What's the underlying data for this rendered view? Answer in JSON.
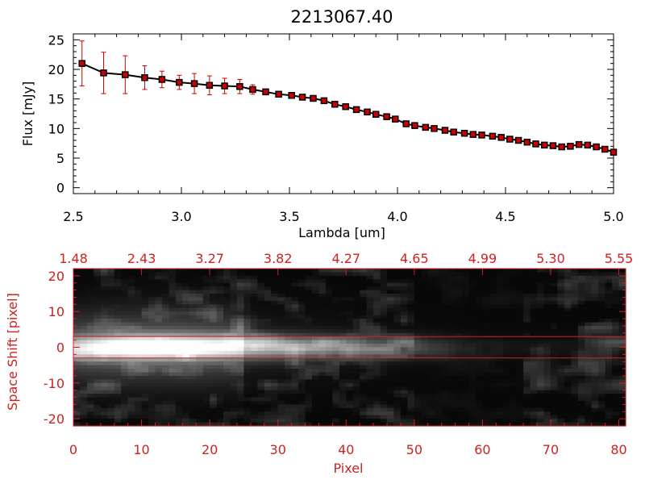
{
  "chart_data": [
    {
      "type": "line",
      "title": "2213067.40",
      "xlabel": "Lambda [um]",
      "ylabel": "Flux [mJy]",
      "xlim": [
        2.5,
        5.0
      ],
      "ylim": [
        -1,
        26
      ],
      "xticks": [
        "2.5",
        "3.0",
        "3.5",
        "4.0",
        "4.5",
        "5.0"
      ],
      "yticks": [
        "0",
        "5",
        "10",
        "15",
        "20",
        "25"
      ],
      "series": [
        {
          "name": "flux",
          "x": [
            2.54,
            2.64,
            2.74,
            2.83,
            2.91,
            2.99,
            3.06,
            3.13,
            3.2,
            3.27,
            3.33,
            3.39,
            3.45,
            3.51,
            3.56,
            3.61,
            3.66,
            3.71,
            3.76,
            3.81,
            3.86,
            3.9,
            3.95,
            3.99,
            4.04,
            4.08,
            4.13,
            4.17,
            4.22,
            4.26,
            4.31,
            4.35,
            4.39,
            4.44,
            4.48,
            4.52,
            4.56,
            4.6,
            4.64,
            4.68,
            4.72,
            4.76,
            4.8,
            4.84,
            4.88,
            4.92,
            4.96,
            5.0
          ],
          "y": [
            21.0,
            19.4,
            19.1,
            18.6,
            18.3,
            17.8,
            17.6,
            17.3,
            17.2,
            17.1,
            16.6,
            16.2,
            15.8,
            15.6,
            15.3,
            15.1,
            14.7,
            14.1,
            13.7,
            13.2,
            12.8,
            12.4,
            12.0,
            11.6,
            10.8,
            10.5,
            10.2,
            10.0,
            9.7,
            9.4,
            9.2,
            9.0,
            8.9,
            8.7,
            8.5,
            8.2,
            8.0,
            7.7,
            7.4,
            7.2,
            7.1,
            6.9,
            7.0,
            7.3,
            7.2,
            6.9,
            6.5,
            6.0
          ],
          "yerr": [
            3.8,
            3.5,
            3.2,
            2.0,
            1.4,
            1.2,
            1.7,
            1.6,
            1.3,
            1.2,
            0.8,
            0.3,
            0.3,
            0.3,
            0.3,
            0.3,
            0.3,
            0.3,
            0.3,
            0.3,
            0.3,
            0.3,
            0.3,
            0.3,
            0.3,
            0.3,
            0.3,
            0.3,
            0.3,
            0.3,
            0.3,
            0.3,
            0.3,
            0.3,
            0.3,
            0.3,
            0.3,
            0.3,
            0.3,
            0.3,
            0.3,
            0.3,
            0.3,
            0.3,
            0.3,
            0.3,
            0.3,
            0.3
          ]
        }
      ],
      "colors": {
        "line": "#000000",
        "marker": "#cc0000",
        "errorbar": "#cc0000"
      }
    },
    {
      "type": "heatmap",
      "xlabel": "Pixel",
      "ylabel": "Space Shift [pixel]",
      "xlim": [
        0,
        81
      ],
      "ylim": [
        -22,
        22
      ],
      "xticks": [
        "0",
        "10",
        "20",
        "30",
        "40",
        "50",
        "60",
        "70",
        "80"
      ],
      "yticks": [
        "-20",
        "-10",
        "0",
        "10",
        "20"
      ],
      "top_axis_ticks": [
        "1.48",
        "2.43",
        "3.27",
        "3.82",
        "4.27",
        "4.65",
        "4.99",
        "5.30",
        "5.55"
      ],
      "extraction_aperture": [
        -3,
        3
      ],
      "trace": {
        "center": 0,
        "peak_pixel": 9,
        "fade_pixel": 60
      },
      "colors": {
        "axis": "#cc2222",
        "aperture": "#cc2222"
      }
    }
  ]
}
